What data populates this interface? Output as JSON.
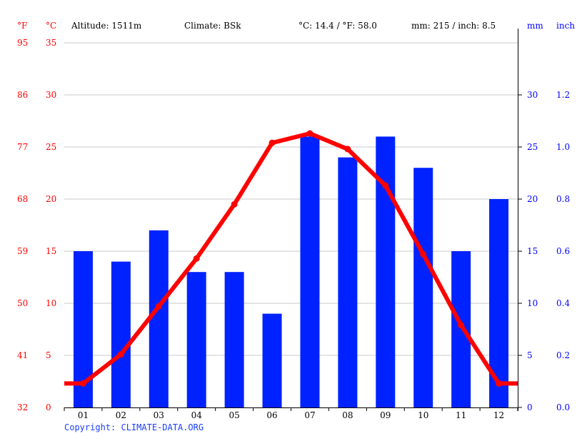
{
  "header": {
    "unit_f": "°F",
    "unit_c": "°C",
    "altitude": "Altitude: 1511m",
    "climate": "Climate: BSk",
    "avg_temp": "°C: 14.4 / °F: 58.0",
    "precip": "mm: 215 / inch: 8.5",
    "unit_mm": "mm",
    "unit_inch": "inch"
  },
  "copyright": "Copyright: CLIMATE-DATA.ORG",
  "colors": {
    "temperature": "#ff0000",
    "precipitation": "#0022ff",
    "grid": "#c8c8c8",
    "left_axis_text": "#ff0000",
    "right_axis_text": "#0000ff"
  },
  "axes": {
    "left_c": [
      "0",
      "5",
      "10",
      "15",
      "20",
      "25",
      "30",
      "35"
    ],
    "left_f": [
      "32",
      "41",
      "50",
      "59",
      "68",
      "77",
      "86",
      "95"
    ],
    "right_mm": [
      "0",
      "5",
      "10",
      "15",
      "20",
      "25",
      "30"
    ],
    "right_inch": [
      "0.0",
      "0.2",
      "0.4",
      "0.6",
      "0.8",
      "1.0",
      "1.2"
    ]
  },
  "chart_data": {
    "type": "bar+line",
    "title": "Climate chart",
    "categories": [
      "01",
      "02",
      "03",
      "04",
      "05",
      "06",
      "07",
      "08",
      "09",
      "10",
      "11",
      "12"
    ],
    "series": [
      {
        "name": "Precipitation (mm)",
        "type": "bar",
        "axis": "right",
        "values": [
          15,
          14,
          17,
          13,
          13,
          9,
          26,
          24,
          26,
          23,
          15,
          20
        ]
      },
      {
        "name": "Temperature (°C)",
        "type": "line",
        "axis": "left",
        "values": [
          2.3,
          5.1,
          9.7,
          14.3,
          19.5,
          25.4,
          26.3,
          24.8,
          21.3,
          14.7,
          7.9,
          2.3
        ]
      }
    ],
    "xlabel": "",
    "ylabel_left": "°C / °F",
    "ylabel_right": "mm / inch",
    "ylim_left_c": [
      0,
      35
    ],
    "ylim_left_f": [
      32,
      95
    ],
    "ylim_right_mm": [
      0,
      35
    ],
    "right_ticks_mm": [
      0,
      5,
      10,
      15,
      20,
      25,
      30
    ],
    "grid": true,
    "legend": "none"
  }
}
